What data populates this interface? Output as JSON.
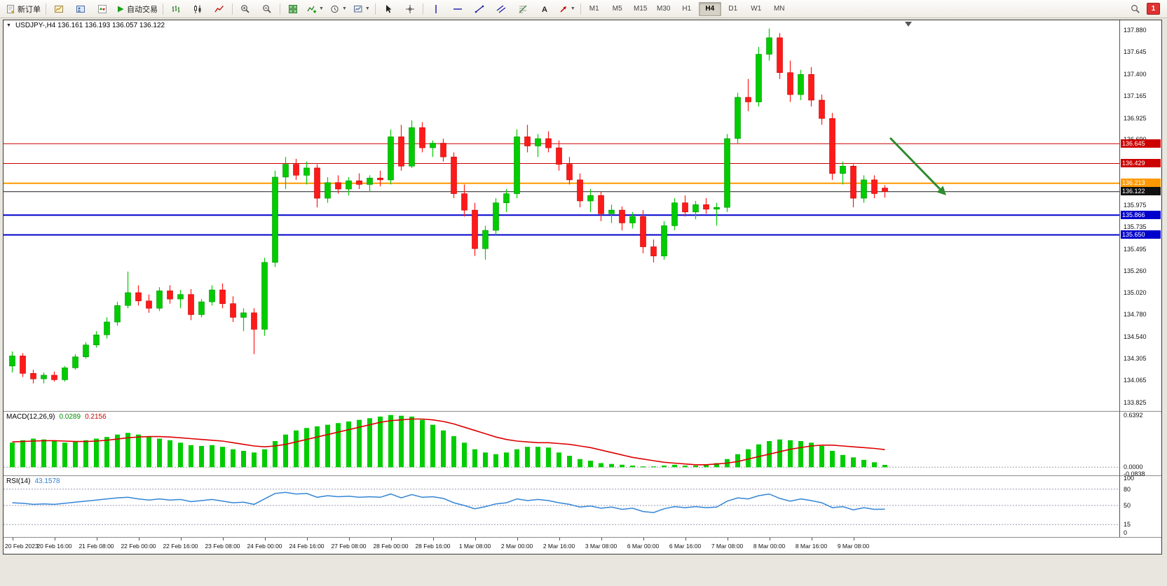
{
  "toolbar": {
    "new_order": "新订单",
    "autotrading": "自动交易",
    "timeframes": [
      "M1",
      "M5",
      "M15",
      "M30",
      "H1",
      "H4",
      "D1",
      "W1",
      "MN"
    ],
    "active_timeframe": "H4",
    "badge": "1"
  },
  "chart": {
    "title_text": "USDJPY-,H4 136.161 136.193 136.057 136.122",
    "up_color": "#00cc00",
    "down_color": "#ff1a1a",
    "annotation_arrow_color": "#2e8b2e",
    "price_axis_labels": [
      "137.880",
      "137.645",
      "137.400",
      "137.165",
      "136.925",
      "136.690",
      "135.975",
      "135.735",
      "135.495",
      "135.260",
      "135.020",
      "134.780",
      "134.540",
      "134.305",
      "134.065",
      "133.825"
    ],
    "time_axis_labels": [
      "20 Feb 2023",
      "20 Feb 16:00",
      "21 Feb 08:00",
      "22 Feb 00:00",
      "22 Feb 16:00",
      "23 Feb 08:00",
      "24 Feb 00:00",
      "24 Feb 16:00",
      "27 Feb 08:00",
      "28 Feb 00:00",
      "28 Feb 16:00",
      "1 Mar 08:00",
      "2 Mar 00:00",
      "2 Mar 16:00",
      "3 Mar 08:00",
      "6 Mar 00:00",
      "6 Mar 16:00",
      "7 Mar 08:00",
      "8 Mar 00:00",
      "8 Mar 16:00",
      "9 Mar 08:00"
    ],
    "levels": [
      {
        "price": 136.645,
        "label": "136.645",
        "color": "#cc0000",
        "kind": "resistance"
      },
      {
        "price": 136.429,
        "label": "136.429",
        "color": "#cc0000",
        "kind": "resistance"
      },
      {
        "price": 136.213,
        "label": "136.213",
        "color": "#ff9900",
        "kind": "pivot"
      },
      {
        "price": 136.122,
        "label": "136.122",
        "color": "#1a1a1a",
        "kind": "current"
      },
      {
        "price": 135.866,
        "label": "135.866",
        "color": "#0000cc",
        "kind": "support"
      },
      {
        "price": 135.65,
        "label": "135.650",
        "color": "#0000cc",
        "kind": "support"
      }
    ]
  },
  "chart_data": {
    "type": "candlestick",
    "symbol": "USDJPY-",
    "timeframe": "H4",
    "current_ohlc": {
      "open": "136.161",
      "high": "136.193",
      "low": "136.057",
      "close": "136.122"
    },
    "price_range": [
      133.825,
      137.88
    ],
    "ohlc": [
      [
        134.22,
        134.38,
        134.15,
        134.33
      ],
      [
        134.33,
        134.36,
        134.1,
        134.14
      ],
      [
        134.14,
        134.18,
        134.03,
        134.08
      ],
      [
        134.08,
        134.15,
        134.03,
        134.12
      ],
      [
        134.12,
        134.16,
        134.05,
        134.07
      ],
      [
        134.07,
        134.22,
        134.05,
        134.2
      ],
      [
        134.2,
        134.35,
        134.18,
        134.32
      ],
      [
        134.32,
        134.48,
        134.3,
        134.45
      ],
      [
        134.45,
        134.6,
        134.42,
        134.56
      ],
      [
        134.56,
        134.75,
        134.52,
        134.7
      ],
      [
        134.7,
        134.92,
        134.66,
        134.88
      ],
      [
        134.88,
        135.25,
        134.85,
        135.02
      ],
      [
        135.02,
        135.1,
        134.88,
        134.93
      ],
      [
        134.93,
        135.0,
        134.8,
        134.85
      ],
      [
        134.85,
        135.08,
        134.82,
        135.04
      ],
      [
        135.04,
        135.1,
        134.9,
        134.95
      ],
      [
        134.95,
        135.05,
        134.85,
        135.0
      ],
      [
        135.0,
        135.06,
        134.72,
        134.78
      ],
      [
        134.78,
        134.95,
        134.75,
        134.92
      ],
      [
        134.92,
        135.1,
        134.88,
        135.05
      ],
      [
        135.05,
        135.12,
        134.85,
        134.9
      ],
      [
        134.9,
        134.98,
        134.7,
        134.75
      ],
      [
        134.75,
        134.85,
        134.6,
        134.8
      ],
      [
        134.8,
        134.85,
        134.35,
        134.62
      ],
      [
        134.62,
        135.4,
        134.55,
        135.35
      ],
      [
        135.35,
        136.35,
        135.3,
        136.28
      ],
      [
        136.28,
        136.5,
        136.15,
        136.42
      ],
      [
        136.42,
        136.48,
        136.25,
        136.3
      ],
      [
        136.3,
        136.45,
        136.2,
        136.38
      ],
      [
        136.38,
        136.42,
        135.95,
        136.05
      ],
      [
        136.05,
        136.28,
        136.0,
        136.22
      ],
      [
        136.22,
        136.3,
        136.1,
        136.15
      ],
      [
        136.15,
        136.28,
        136.08,
        136.24
      ],
      [
        136.24,
        136.32,
        136.15,
        136.2
      ],
      [
        136.2,
        136.3,
        136.12,
        136.27
      ],
      [
        136.27,
        136.35,
        136.18,
        136.25
      ],
      [
        136.25,
        136.8,
        136.2,
        136.72
      ],
      [
        136.72,
        136.85,
        136.35,
        136.4
      ],
      [
        136.4,
        136.9,
        136.38,
        136.82
      ],
      [
        136.82,
        136.88,
        136.55,
        136.6
      ],
      [
        136.6,
        136.68,
        136.5,
        136.65
      ],
      [
        136.65,
        136.7,
        136.45,
        136.5
      ],
      [
        136.5,
        136.55,
        136.05,
        136.1
      ],
      [
        136.1,
        136.2,
        135.85,
        135.92
      ],
      [
        135.92,
        136.0,
        135.42,
        135.5
      ],
      [
        135.5,
        135.75,
        135.38,
        135.7
      ],
      [
        135.7,
        136.05,
        135.65,
        136.0
      ],
      [
        136.0,
        136.15,
        135.9,
        136.1
      ],
      [
        136.1,
        136.8,
        136.05,
        136.72
      ],
      [
        136.72,
        136.85,
        136.55,
        136.62
      ],
      [
        136.62,
        136.75,
        136.5,
        136.7
      ],
      [
        136.7,
        136.78,
        136.55,
        136.6
      ],
      [
        136.6,
        136.68,
        136.35,
        136.42
      ],
      [
        136.42,
        136.5,
        136.2,
        136.25
      ],
      [
        136.25,
        136.32,
        135.95,
        136.02
      ],
      [
        136.02,
        136.15,
        135.9,
        136.08
      ],
      [
        136.08,
        136.12,
        135.8,
        135.88
      ],
      [
        135.88,
        135.98,
        135.78,
        135.92
      ],
      [
        135.92,
        135.96,
        135.7,
        135.78
      ],
      [
        135.78,
        135.9,
        135.72,
        135.85
      ],
      [
        135.85,
        135.92,
        135.45,
        135.52
      ],
      [
        135.52,
        135.6,
        135.35,
        135.42
      ],
      [
        135.42,
        135.8,
        135.38,
        135.75
      ],
      [
        135.75,
        136.05,
        135.7,
        136.0
      ],
      [
        136.0,
        136.08,
        135.85,
        135.9
      ],
      [
        135.9,
        136.02,
        135.82,
        135.98
      ],
      [
        135.98,
        136.05,
        135.88,
        135.93
      ],
      [
        135.93,
        136.0,
        135.75,
        135.95
      ],
      [
        135.95,
        136.75,
        135.9,
        136.7
      ],
      [
        136.7,
        137.2,
        136.65,
        137.15
      ],
      [
        137.15,
        137.35,
        137.0,
        137.1
      ],
      [
        137.1,
        137.7,
        137.05,
        137.62
      ],
      [
        137.62,
        137.9,
        137.55,
        137.8
      ],
      [
        137.8,
        137.85,
        137.35,
        137.42
      ],
      [
        137.42,
        137.55,
        137.1,
        137.18
      ],
      [
        137.18,
        137.45,
        137.12,
        137.4
      ],
      [
        137.4,
        137.48,
        137.05,
        137.12
      ],
      [
        137.12,
        137.18,
        136.85,
        136.92
      ],
      [
        136.92,
        136.98,
        136.25,
        136.32
      ],
      [
        136.32,
        136.45,
        136.2,
        136.4
      ],
      [
        136.4,
        136.42,
        135.95,
        136.05
      ],
      [
        136.05,
        136.3,
        136.0,
        136.25
      ],
      [
        136.25,
        136.3,
        136.05,
        136.1
      ],
      [
        136.161,
        136.193,
        136.057,
        136.122
      ]
    ]
  },
  "macd": {
    "name": "MACD(12,26,9)",
    "main_value": "0.0289",
    "signal_value": "0.2156",
    "scale_labels": [
      "0.6392",
      "0.0000",
      "-0.0838"
    ],
    "histogram_color": "#00cc00",
    "signal_color": "#dd0000",
    "histogram": [
      0.3,
      0.33,
      0.35,
      0.34,
      0.32,
      0.3,
      0.31,
      0.33,
      0.35,
      0.37,
      0.4,
      0.42,
      0.4,
      0.37,
      0.35,
      0.33,
      0.3,
      0.27,
      0.26,
      0.27,
      0.25,
      0.22,
      0.2,
      0.18,
      0.22,
      0.32,
      0.4,
      0.45,
      0.48,
      0.5,
      0.52,
      0.54,
      0.56,
      0.58,
      0.6,
      0.62,
      0.6392,
      0.63,
      0.62,
      0.58,
      0.52,
      0.45,
      0.38,
      0.3,
      0.22,
      0.18,
      0.16,
      0.18,
      0.22,
      0.25,
      0.25,
      0.24,
      0.18,
      0.14,
      0.1,
      0.08,
      0.05,
      0.04,
      0.03,
      0.02,
      0.01,
      0.01,
      0.02,
      0.03,
      0.02,
      0.02,
      0.03,
      0.05,
      0.1,
      0.16,
      0.22,
      0.28,
      0.32,
      0.34,
      0.33,
      0.32,
      0.3,
      0.26,
      0.2,
      0.15,
      0.12,
      0.09,
      0.06,
      0.0289
    ],
    "signal": [
      0.31,
      0.315,
      0.32,
      0.325,
      0.325,
      0.32,
      0.315,
      0.315,
      0.32,
      0.33,
      0.345,
      0.36,
      0.37,
      0.375,
      0.375,
      0.37,
      0.36,
      0.35,
      0.34,
      0.33,
      0.32,
      0.3,
      0.28,
      0.26,
      0.25,
      0.26,
      0.28,
      0.31,
      0.34,
      0.37,
      0.4,
      0.43,
      0.46,
      0.49,
      0.52,
      0.55,
      0.57,
      0.58,
      0.59,
      0.59,
      0.58,
      0.56,
      0.53,
      0.49,
      0.45,
      0.41,
      0.37,
      0.34,
      0.32,
      0.31,
      0.3,
      0.3,
      0.29,
      0.28,
      0.26,
      0.24,
      0.21,
      0.18,
      0.15,
      0.12,
      0.1,
      0.08,
      0.06,
      0.05,
      0.04,
      0.03,
      0.03,
      0.04,
      0.05,
      0.07,
      0.1,
      0.13,
      0.16,
      0.19,
      0.22,
      0.24,
      0.26,
      0.27,
      0.27,
      0.26,
      0.25,
      0.24,
      0.23,
      0.2156
    ]
  },
  "rsi": {
    "name": "RSI(14)",
    "value": "43.1578",
    "scale_labels": [
      "100",
      "80",
      "50",
      "15",
      "0"
    ],
    "level_lines": [
      80,
      50,
      15
    ],
    "line_color": "#3385d6",
    "values": [
      55,
      54,
      52,
      53,
      52,
      54,
      56,
      58,
      60,
      62,
      64,
      65,
      62,
      60,
      62,
      60,
      61,
      57,
      59,
      61,
      58,
      55,
      56,
      52,
      62,
      72,
      74,
      71,
      72,
      65,
      68,
      66,
      67,
      65,
      66,
      65,
      71,
      64,
      70,
      65,
      66,
      63,
      55,
      50,
      44,
      48,
      53,
      55,
      62,
      59,
      61,
      59,
      55,
      52,
      47,
      49,
      45,
      47,
      43,
      45,
      39,
      37,
      44,
      48,
      46,
      48,
      46,
      47,
      58,
      64,
      62,
      68,
      71,
      63,
      58,
      62,
      59,
      55,
      46,
      48,
      42,
      46,
      43,
      43.16
    ]
  }
}
